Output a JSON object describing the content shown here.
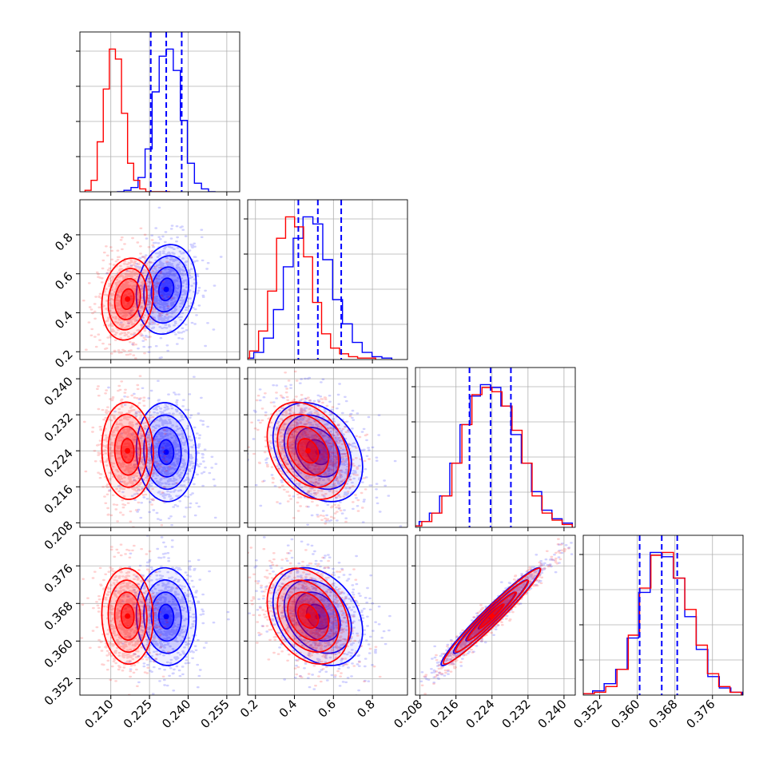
{
  "chart_data": {
    "type": "corner",
    "grid": true,
    "n_params": 4,
    "params": [
      {
        "range": [
          0.198,
          0.26
        ],
        "ticks": [
          0.21,
          0.225,
          0.24,
          0.255
        ],
        "tick_labels": [
          "0.210",
          "0.225",
          "0.240",
          "0.255"
        ]
      },
      {
        "range": [
          0.16,
          0.98
        ],
        "ticks": [
          0.2,
          0.4,
          0.6,
          0.8
        ],
        "tick_labels": [
          "0.2",
          "0.4",
          "0.6",
          "0.8"
        ]
      },
      {
        "range": [
          0.207,
          0.2425
        ],
        "ticks": [
          0.208,
          0.216,
          0.224,
          0.232,
          0.24
        ],
        "tick_labels": [
          "0.208",
          "0.216",
          "0.224",
          "0.232",
          "0.240"
        ]
      },
      {
        "range": [
          0.3485,
          0.3825
        ],
        "ticks": [
          0.352,
          0.36,
          0.368,
          0.376
        ],
        "tick_labels": [
          "0.352",
          "0.360",
          "0.368",
          "0.376"
        ]
      }
    ],
    "series": [
      {
        "color": "#0000ff",
        "means": [
          0.2315,
          0.52,
          0.2237,
          0.3652
        ],
        "stds": [
          0.0058,
          0.115,
          0.0055,
          0.0052
        ],
        "quantiles": [
          [
            0.2255,
            0.2315,
            0.2375
          ],
          [
            0.42,
            0.52,
            0.64
          ],
          [
            0.219,
            0.2237,
            0.2282
          ],
          [
            0.3605,
            0.3652,
            0.3685
          ]
        ],
        "hist": [
          [
            0,
            0.01,
            0.03,
            0.1,
            0.3,
            0.7,
            0.95,
            1.0,
            0.85,
            0.5,
            0.2,
            0.06,
            0.02,
            0
          ],
          [
            0.01,
            0.05,
            0.15,
            0.35,
            0.65,
            0.85,
            1.0,
            0.95,
            0.7,
            0.42,
            0.25,
            0.12,
            0.05,
            0.02,
            0.01
          ],
          [
            0.01,
            0.04,
            0.1,
            0.22,
            0.45,
            0.72,
            0.92,
            1.0,
            0.98,
            0.85,
            0.65,
            0.45,
            0.25,
            0.12,
            0.06,
            0.03
          ],
          [
            0.01,
            0.03,
            0.08,
            0.18,
            0.4,
            0.72,
            1.0,
            0.97,
            0.82,
            0.55,
            0.32,
            0.13,
            0.05,
            0.02
          ]
        ]
      },
      {
        "color": "#ff0000",
        "means": [
          0.2165,
          0.47,
          0.224,
          0.3653
        ],
        "stds": [
          0.005,
          0.105,
          0.0054,
          0.0051
        ],
        "quantiles": [],
        "hist": [
          [
            0.01,
            0.08,
            0.35,
            0.72,
            1.0,
            0.93,
            0.55,
            0.2,
            0.08,
            0.02,
            0,
            0,
            0,
            0
          ],
          [
            0.01,
            0.06,
            0.2,
            0.48,
            0.85,
            1.0,
            0.93,
            0.72,
            0.4,
            0.18,
            0.08,
            0.04,
            0.02,
            0.01,
            0.01
          ],
          [
            0.01,
            0.04,
            0.1,
            0.22,
            0.45,
            0.72,
            0.93,
            0.98,
            0.95,
            0.85,
            0.68,
            0.45,
            0.22,
            0.1,
            0.05,
            0.02
          ],
          [
            0.01,
            0.02,
            0.06,
            0.18,
            0.42,
            0.75,
            0.98,
            1.0,
            0.82,
            0.6,
            0.35,
            0.15,
            0.06,
            0.02
          ]
        ]
      }
    ],
    "correlations": [
      {
        "pair": [
          0,
          1
        ],
        "rho": 0.15
      },
      {
        "pair": [
          0,
          2
        ],
        "rho": -0.05
      },
      {
        "pair": [
          0,
          3
        ],
        "rho": -0.05
      },
      {
        "pair": [
          1,
          2
        ],
        "rho": -0.3
      },
      {
        "pair": [
          1,
          3
        ],
        "rho": -0.3
      },
      {
        "pair": [
          2,
          3
        ],
        "rho": 0.97
      }
    ]
  }
}
